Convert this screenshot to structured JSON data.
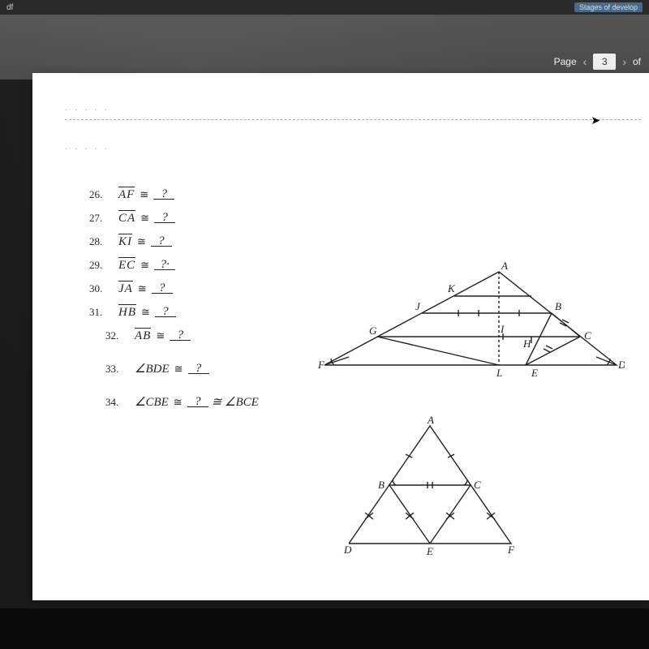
{
  "browser": {
    "left_tab": "df",
    "right_tab": "Stages of develop"
  },
  "viewer": {
    "page_label": "Page",
    "page_value": "3",
    "of_label": "of"
  },
  "problems": [
    {
      "n": "26.",
      "lhs": "AF",
      "lhs_bar": true,
      "rhs": "?"
    },
    {
      "n": "27.",
      "lhs": "CA",
      "lhs_bar": true,
      "rhs": "?"
    },
    {
      "n": "28.",
      "lhs": "KI",
      "lhs_bar": true,
      "rhs": "?"
    },
    {
      "n": "29.",
      "lhs": "EC",
      "lhs_bar": true,
      "rhs": "?·"
    },
    {
      "n": "30.",
      "lhs": "JA",
      "lhs_bar": true,
      "rhs": "?"
    },
    {
      "n": "31.",
      "lhs": "HB",
      "lhs_bar": true,
      "rhs": "?"
    },
    {
      "n": "32.",
      "lhs": "AB",
      "lhs_bar": true,
      "rhs": "?",
      "indent": true
    },
    {
      "n": "33.",
      "lhs": "∠BDE",
      "lhs_bar": false,
      "rhs": "?",
      "indent": true,
      "gap": true
    },
    {
      "n": "34.",
      "lhs": "∠CBE",
      "lhs_bar": false,
      "rhs": "?",
      "tail": " ≅ ∠BCE",
      "indent": true,
      "gap": true
    }
  ],
  "fig1_labels": {
    "F": "F",
    "G": "G",
    "J": "J",
    "K": "K",
    "A": "A",
    "B": "B",
    "C": "C",
    "D": "D",
    "L": "L",
    "E": "E",
    "H": "H",
    "I": "I"
  },
  "fig2_labels": {
    "A": "A",
    "B": "B",
    "C": "C",
    "D": "D",
    "E": "E",
    "F": "F"
  },
  "colors": {
    "stroke": "#222222",
    "page_bg": "#ffffff",
    "viewer_bg": "#4a4a4a"
  }
}
